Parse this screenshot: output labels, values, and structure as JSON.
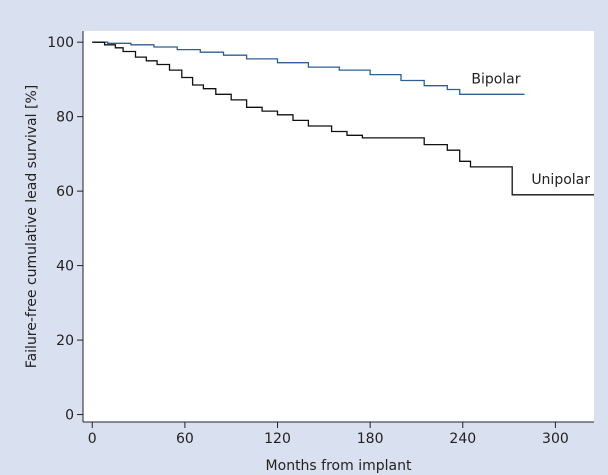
{
  "chart_data": {
    "type": "line",
    "xlabel": "Months from implant",
    "ylabel": "Failure-free cumulative lead survival [%]",
    "xlim": [
      -6,
      325
    ],
    "ylim": [
      -2,
      103
    ],
    "x_ticks": [
      0,
      60,
      120,
      180,
      240,
      300
    ],
    "y_ticks": [
      0,
      20,
      40,
      60,
      80,
      100
    ],
    "grid": false,
    "step": true,
    "series": [
      {
        "name": "Bipolar",
        "color": "#2e5f95",
        "points": [
          [
            0,
            100
          ],
          [
            10,
            99.7
          ],
          [
            25,
            99.3
          ],
          [
            40,
            98.7
          ],
          [
            55,
            98
          ],
          [
            70,
            97.3
          ],
          [
            85,
            96.5
          ],
          [
            100,
            95.5
          ],
          [
            120,
            94.5
          ],
          [
            140,
            93.3
          ],
          [
            160,
            92.5
          ],
          [
            180,
            91.3
          ],
          [
            200,
            89.7
          ],
          [
            215,
            88.3
          ],
          [
            230,
            87.3
          ],
          [
            238,
            86
          ],
          [
            280,
            86
          ]
        ]
      },
      {
        "name": "Unipolar",
        "color": "#111111",
        "points": [
          [
            0,
            100
          ],
          [
            8,
            99.3
          ],
          [
            15,
            98.5
          ],
          [
            20,
            97.5
          ],
          [
            28,
            96
          ],
          [
            35,
            95
          ],
          [
            42,
            94
          ],
          [
            50,
            92.5
          ],
          [
            58,
            90.5
          ],
          [
            65,
            88.5
          ],
          [
            72,
            87.5
          ],
          [
            80,
            86
          ],
          [
            90,
            84.5
          ],
          [
            100,
            82.5
          ],
          [
            110,
            81.5
          ],
          [
            120,
            80.5
          ],
          [
            130,
            79
          ],
          [
            140,
            77.5
          ],
          [
            155,
            76
          ],
          [
            165,
            75
          ],
          [
            175,
            74.3
          ],
          [
            215,
            72.5
          ],
          [
            230,
            71
          ],
          [
            238,
            68
          ],
          [
            245,
            66.5
          ],
          [
            272,
            59
          ],
          [
            325,
            59
          ]
        ]
      }
    ]
  }
}
